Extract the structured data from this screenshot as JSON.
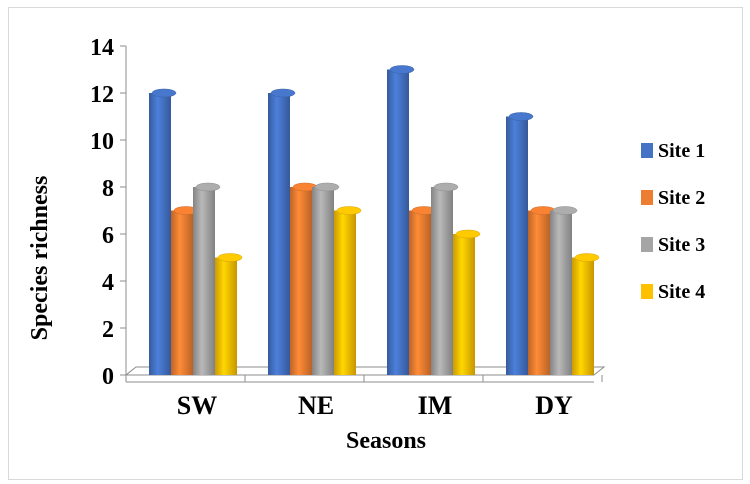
{
  "chart_data": {
    "type": "bar",
    "style": "3d-clustered-column",
    "categories": [
      "SW",
      "NE",
      "IM",
      "DY"
    ],
    "series": [
      {
        "name": "Site 1",
        "color": "#4472C4",
        "values": [
          12,
          12,
          13,
          11
        ]
      },
      {
        "name": "Site 2",
        "color": "#ED7D31",
        "values": [
          7,
          8,
          7,
          7
        ]
      },
      {
        "name": "Site 3",
        "color": "#A5A5A5",
        "values": [
          8,
          8,
          8,
          7
        ]
      },
      {
        "name": "Site 4",
        "color": "#FFC000",
        "values": [
          5,
          7,
          6,
          5
        ]
      }
    ],
    "xlabel": "Seasons",
    "ylabel": "Species richness",
    "ylim": [
      0,
      14
    ],
    "yticks": [
      "0",
      "2",
      "4",
      "6",
      "8",
      "10",
      "12",
      "14"
    ],
    "grid": false,
    "legend_position": "right"
  }
}
